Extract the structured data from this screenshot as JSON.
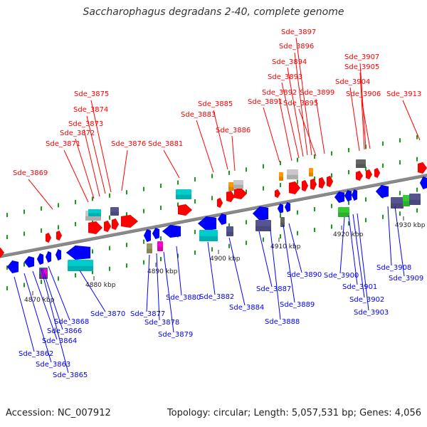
{
  "title": "Saccharophagus degradans 2-40, complete genome",
  "footer": {
    "accession": "Accession: NC_007912",
    "summary": "Topology: circular; Length: 5,057,531 bp; Genes: 4,056"
  },
  "colors": {
    "axis": "#8a8a8a",
    "tick": "#1a9a1a",
    "forward": "#ff0000",
    "reverse": "#0000ff",
    "cyan": "#00cccc",
    "slate": "#55558f",
    "grey": "#c8c8c8",
    "darkgrey": "#666666",
    "orange": "#ff9900",
    "green": "#33cc33",
    "olive": "#999966",
    "magenta": "#ff00cc"
  },
  "scale_labels": [
    "4870 kbp",
    "4880 kbp",
    "4890 kbp",
    "4900 kbp",
    "4910 kbp",
    "4920 kbp",
    "4930 kbp"
  ],
  "forward_labels": [
    "Sde_3869",
    "Sde_3871",
    "Sde_3872",
    "Sde_3873",
    "Sde_3874",
    "Sde_3875",
    "Sde_3876",
    "Sde_3881",
    "Sde_3883",
    "Sde_3885",
    "Sde_3886",
    "Sde_3891",
    "Sde_3892",
    "Sde_3893",
    "Sde_3894",
    "Sde_3895",
    "Sde_3896",
    "Sde_3897",
    "Sde_3899",
    "Sde_3904",
    "Sde_3905",
    "Sde_3906",
    "Sde_3907",
    "Sde_3913"
  ],
  "reverse_labels": [
    "Sde_3862",
    "Sde_3863",
    "Sde_3864",
    "Sde_3865",
    "Sde_3866",
    "Sde_3868",
    "Sde_3870",
    "Sde_3877",
    "Sde_3878",
    "Sde_3879",
    "Sde_3880",
    "Sde_3882",
    "Sde_3884",
    "Sde_3887",
    "Sde_3888",
    "Sde_3889",
    "Sde_3890",
    "Sde_3900",
    "Sde_3901",
    "Sde_3902",
    "Sde_3903",
    "Sde_3908",
    "Sde_3909"
  ]
}
